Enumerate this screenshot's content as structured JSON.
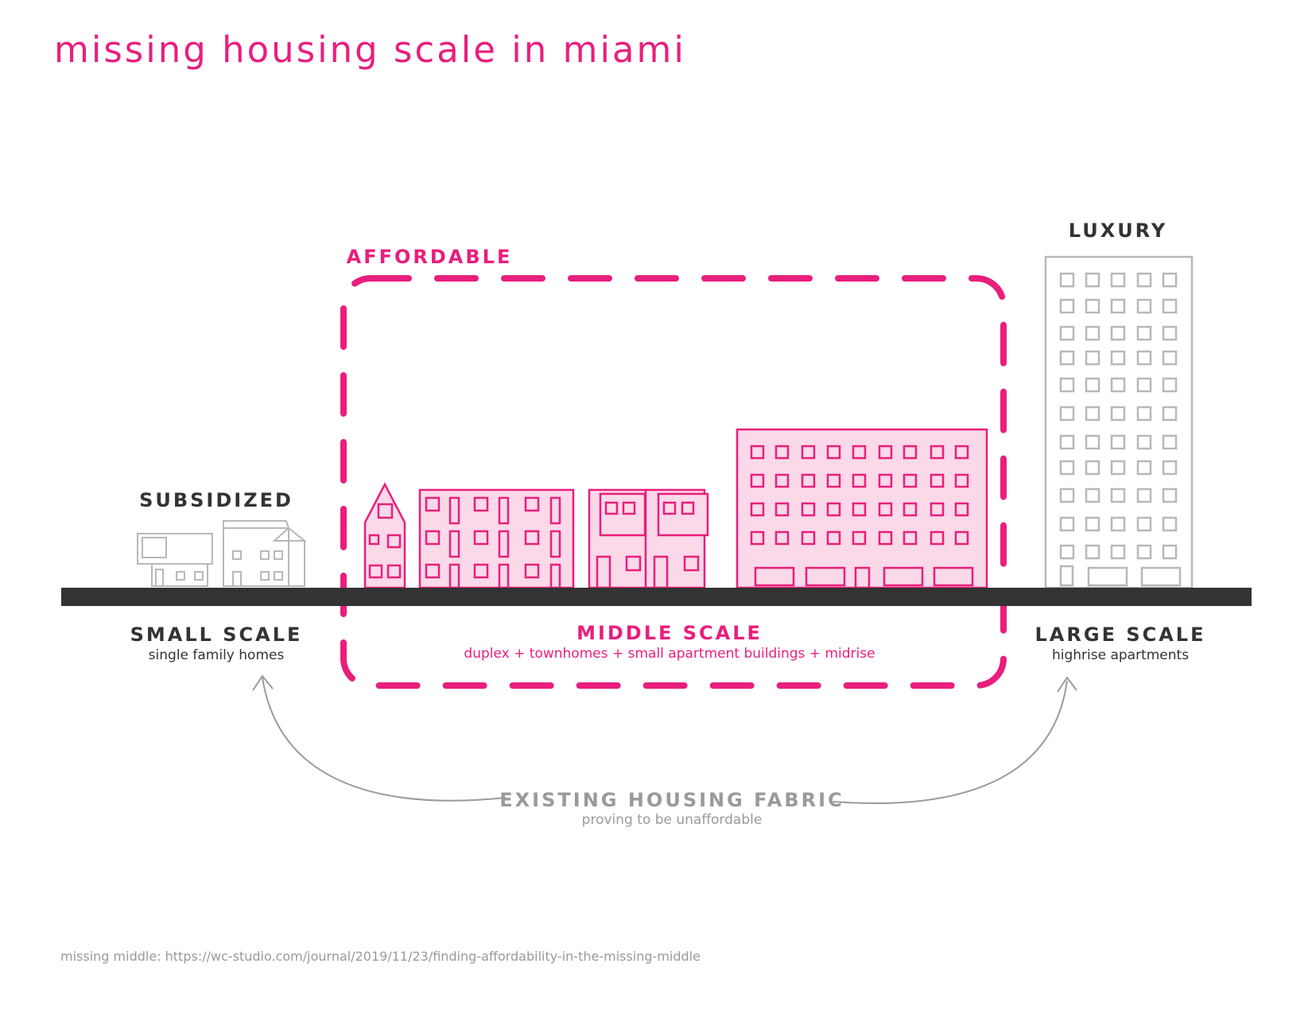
{
  "title": "missing housing scale in miami",
  "colors": {
    "accent": "#e91e7d",
    "accent_fill": "#fbd9e8",
    "dark": "#333333",
    "gray": "#9a9a9a",
    "gray_stroke": "#b3b3b3"
  },
  "labels": {
    "subsidized": "SUBSIDIZED",
    "affordable": "AFFORDABLE",
    "luxury": "LUXURY"
  },
  "scales": {
    "small": {
      "title": "SMALL SCALE",
      "subtitle": "single family homes"
    },
    "middle": {
      "title": "MIDDLE SCALE",
      "subtitle": "duplex + townhomes + small apartment buildings + midrise"
    },
    "large": {
      "title": "LARGE SCALE",
      "subtitle": "highrise apartments"
    }
  },
  "existing": {
    "title": "EXISTING HOUSING FABRIC",
    "subtitle": "proving to be unaffordable"
  },
  "footnote": "missing middle: https://wc-studio.com/journal/2019/11/23/finding-affordability-in-the-missing-middle",
  "icons": [
    "house-icon",
    "townhome-icon",
    "apartment-icon",
    "midrise-icon",
    "highrise-icon",
    "arrow-icon"
  ]
}
